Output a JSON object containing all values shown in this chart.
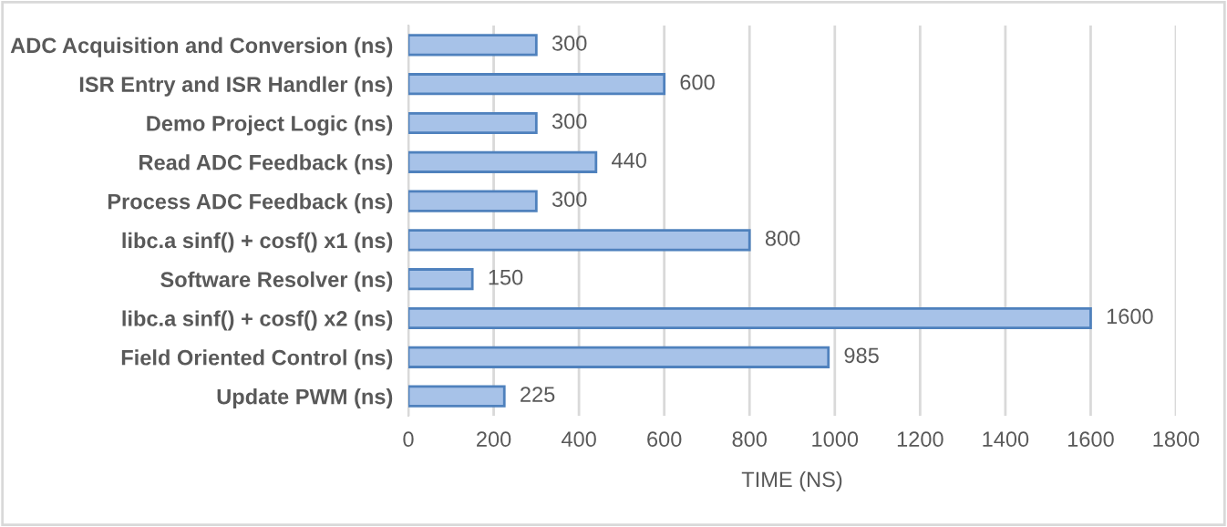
{
  "chart_data": {
    "type": "bar",
    "orientation": "horizontal",
    "xlabel": "TIME (NS)",
    "categories": [
      "ADC Acquisition and Conversion (ns)",
      "ISR Entry and ISR Handler (ns)",
      "Demo Project Logic (ns)",
      "Read ADC Feedback (ns)",
      "Process ADC Feedback (ns)",
      "libc.a sinf() + cosf() x1 (ns)",
      "Software Resolver (ns)",
      "libc.a sinf() + cosf() x2 (ns)",
      "Field Oriented Control (ns)",
      "Update PWM (ns)"
    ],
    "values": [
      300,
      600,
      300,
      440,
      300,
      800,
      150,
      1600,
      985,
      225
    ],
    "color": "#a7c2e8",
    "xlim": [
      0,
      1800
    ],
    "xticks": [
      0,
      200,
      400,
      600,
      800,
      1000,
      1200,
      1400,
      1600,
      1800
    ],
    "grid": "x",
    "data_labels": true
  }
}
